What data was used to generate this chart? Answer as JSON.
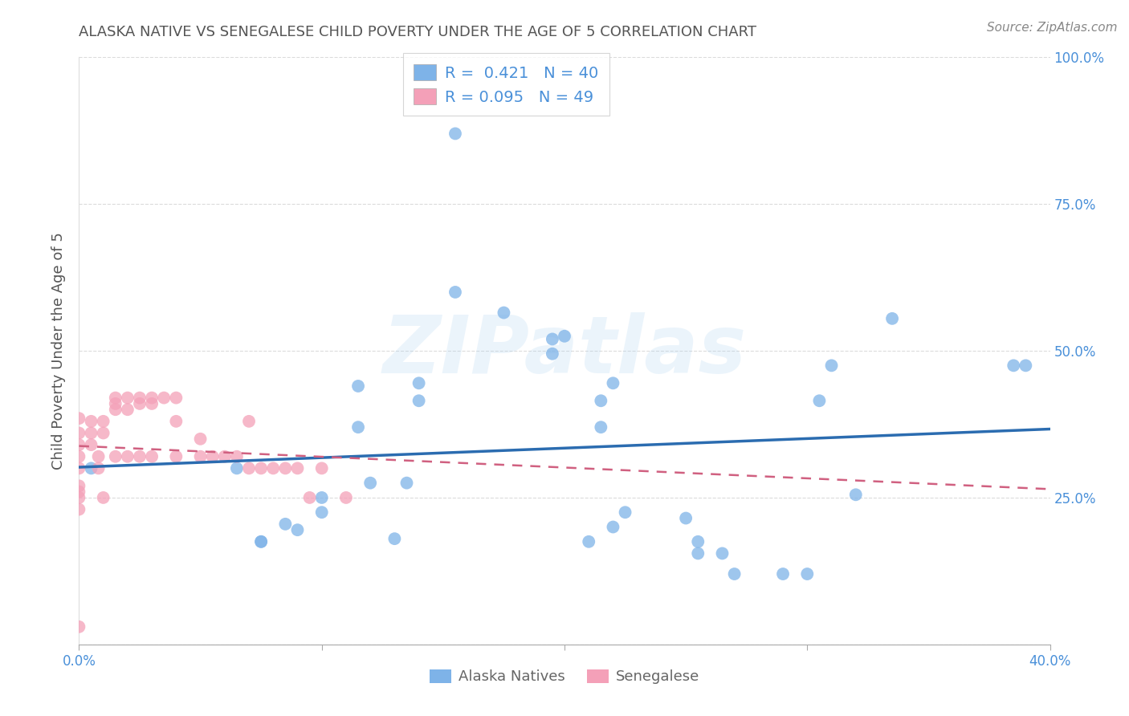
{
  "title": "ALASKA NATIVE VS SENEGALESE CHILD POVERTY UNDER THE AGE OF 5 CORRELATION CHART",
  "source": "Source: ZipAtlas.com",
  "ylabel": "Child Poverty Under the Age of 5",
  "xlim": [
    0.0,
    0.4
  ],
  "ylim": [
    0.0,
    1.0
  ],
  "yticks": [
    0.0,
    0.25,
    0.5,
    0.75,
    1.0
  ],
  "ytick_labels": [
    "",
    "25.0%",
    "50.0%",
    "75.0%",
    "100.0%"
  ],
  "xticks": [
    0.0,
    0.1,
    0.2,
    0.3,
    0.4
  ],
  "xtick_labels": [
    "0.0%",
    "",
    "",
    "",
    "40.0%"
  ],
  "alaska_color": "#7eb3e8",
  "alaska_line_color": "#2b6cb0",
  "senegal_color": "#f4a0b8",
  "senegal_line_color": "#d06080",
  "alaska_R": 0.421,
  "alaska_N": 40,
  "senegal_R": 0.095,
  "senegal_N": 49,
  "alaska_scatter_x": [
    0.005,
    0.065,
    0.075,
    0.075,
    0.085,
    0.09,
    0.1,
    0.1,
    0.115,
    0.115,
    0.12,
    0.13,
    0.135,
    0.14,
    0.14,
    0.155,
    0.155,
    0.175,
    0.195,
    0.195,
    0.2,
    0.21,
    0.215,
    0.215,
    0.22,
    0.225,
    0.22,
    0.25,
    0.255,
    0.255,
    0.265,
    0.27,
    0.29,
    0.3,
    0.305,
    0.31,
    0.32,
    0.335,
    0.385,
    0.39
  ],
  "alaska_scatter_y": [
    0.3,
    0.3,
    0.175,
    0.175,
    0.205,
    0.195,
    0.225,
    0.25,
    0.37,
    0.44,
    0.275,
    0.18,
    0.275,
    0.415,
    0.445,
    0.6,
    0.87,
    0.565,
    0.495,
    0.52,
    0.525,
    0.175,
    0.37,
    0.415,
    0.445,
    0.225,
    0.2,
    0.215,
    0.175,
    0.155,
    0.155,
    0.12,
    0.12,
    0.12,
    0.415,
    0.475,
    0.255,
    0.555,
    0.475,
    0.475
  ],
  "senegal_scatter_x": [
    0.0,
    0.0,
    0.0,
    0.0,
    0.0,
    0.0,
    0.0,
    0.0,
    0.0,
    0.0,
    0.005,
    0.005,
    0.005,
    0.008,
    0.008,
    0.01,
    0.01,
    0.01,
    0.015,
    0.015,
    0.015,
    0.015,
    0.02,
    0.02,
    0.02,
    0.025,
    0.025,
    0.025,
    0.03,
    0.03,
    0.03,
    0.035,
    0.04,
    0.04,
    0.04,
    0.05,
    0.05,
    0.055,
    0.06,
    0.065,
    0.07,
    0.07,
    0.075,
    0.08,
    0.085,
    0.09,
    0.095,
    0.1,
    0.11
  ],
  "senegal_scatter_y": [
    0.385,
    0.36,
    0.34,
    0.32,
    0.3,
    0.27,
    0.26,
    0.25,
    0.23,
    0.03,
    0.38,
    0.36,
    0.34,
    0.32,
    0.3,
    0.38,
    0.36,
    0.25,
    0.42,
    0.41,
    0.4,
    0.32,
    0.42,
    0.4,
    0.32,
    0.42,
    0.41,
    0.32,
    0.42,
    0.41,
    0.32,
    0.42,
    0.42,
    0.38,
    0.32,
    0.35,
    0.32,
    0.32,
    0.32,
    0.32,
    0.38,
    0.3,
    0.3,
    0.3,
    0.3,
    0.3,
    0.25,
    0.3,
    0.25
  ],
  "watermark_text": "ZIPatlas",
  "background_color": "#ffffff",
  "grid_color": "#cccccc",
  "title_color": "#555555",
  "axis_label_color": "#555555",
  "tick_color": "#4a90d9",
  "source_color": "#888888"
}
